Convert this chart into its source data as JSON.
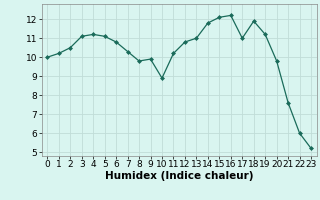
{
  "x": [
    0,
    1,
    2,
    3,
    4,
    5,
    6,
    7,
    8,
    9,
    10,
    11,
    12,
    13,
    14,
    15,
    16,
    17,
    18,
    19,
    20,
    21,
    22,
    23
  ],
  "y": [
    10.0,
    10.2,
    10.5,
    11.1,
    11.2,
    11.1,
    10.8,
    10.3,
    9.8,
    9.9,
    8.9,
    10.2,
    10.8,
    11.0,
    11.8,
    12.1,
    12.2,
    11.0,
    11.9,
    11.2,
    9.8,
    7.6,
    6.0,
    5.2
  ],
  "line_color": "#1a6b5a",
  "marker": "D",
  "marker_size": 2.0,
  "bg_color": "#d9f5f0",
  "grid_color": "#c0ddd8",
  "xlabel": "Humidex (Indice chaleur)",
  "ylim": [
    4.8,
    12.8
  ],
  "xlim": [
    -0.5,
    23.5
  ],
  "yticks": [
    5,
    6,
    7,
    8,
    9,
    10,
    11,
    12
  ],
  "xticks": [
    0,
    1,
    2,
    3,
    4,
    5,
    6,
    7,
    8,
    9,
    10,
    11,
    12,
    13,
    14,
    15,
    16,
    17,
    18,
    19,
    20,
    21,
    22,
    23
  ],
  "tick_fontsize": 6.5,
  "xlabel_fontsize": 7.5
}
